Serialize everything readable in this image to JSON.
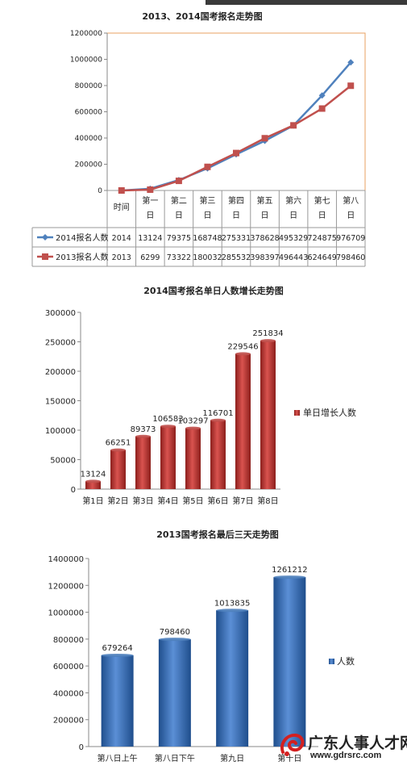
{
  "chart_data": [
    {
      "type": "line",
      "title": "2013、2014国考报名走势图",
      "categories": [
        "时间",
        "第一日",
        "第二日",
        "第三日",
        "第四日",
        "第五日",
        "第六日",
        "第七日",
        "第八日"
      ],
      "ylim": [
        0,
        1200000
      ],
      "yticks": [
        "0",
        "200000",
        "400000",
        "600000",
        "800000",
        "1000000",
        "1200000"
      ],
      "grid": false,
      "series": [
        {
          "name": "2014报名人数",
          "color": "#4f81bd",
          "label0": "2014",
          "values": [
            0,
            13124,
            79375,
            168748,
            275331,
            378628,
            495329,
            724875,
            976709
          ]
        },
        {
          "name": "2013报名人数",
          "color": "#c0504d",
          "label0": "2013",
          "values": [
            0,
            6299,
            73322,
            180032,
            285532,
            398397,
            496443,
            624649,
            798460
          ]
        }
      ]
    },
    {
      "type": "bar",
      "title": "2014国考报名单日人数增长走势图",
      "categories": [
        "第1日",
        "第2日",
        "第3日",
        "第4日",
        "第5日",
        "第6日",
        "第7日",
        "第8日"
      ],
      "values": [
        13124,
        66251,
        89373,
        106583,
        103297,
        116701,
        229546,
        251834
      ],
      "ylim": [
        0,
        300000
      ],
      "yticks": [
        "0",
        "50000",
        "100000",
        "150000",
        "200000",
        "250000",
        "300000"
      ],
      "legend": "单日增长人数",
      "legend_position": "right",
      "color": "#c0504d"
    },
    {
      "type": "bar",
      "title": "2013国考报名最后三天走势图",
      "categories": [
        "第八日上午",
        "第八日下午",
        "第九日",
        "第十日"
      ],
      "values": [
        679264,
        798460,
        1013835,
        1261212
      ],
      "ylim": [
        0,
        1400000
      ],
      "yticks": [
        "0",
        "200000",
        "400000",
        "600000",
        "800000",
        "1000000",
        "1200000",
        "1400000"
      ],
      "legend": "人数",
      "legend_position": "right",
      "color": "#4f81bd"
    }
  ],
  "watermark": {
    "name": "广东人事人才网",
    "url": "www.gdrsrc.com",
    "logo_icon": "red-swirl-logo-icon"
  }
}
